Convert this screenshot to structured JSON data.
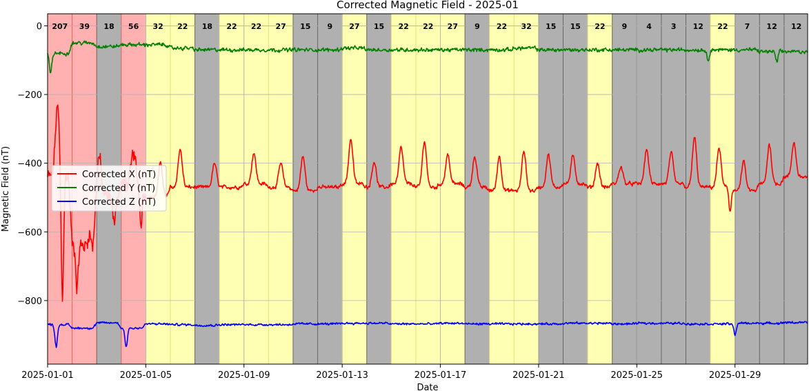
{
  "chart_data": {
    "type": "line",
    "title": "Corrected Magnetic Field - 2025-01",
    "xlabel": "Date",
    "ylabel": "Magnetic Field (nT)",
    "ylim": [
      -985,
      35
    ],
    "xlim": [
      "2025-01-01",
      "2025-01-31T23:00"
    ],
    "xticks": [
      "2025-01-01",
      "2025-01-05",
      "2025-01-09",
      "2025-01-13",
      "2025-01-17",
      "2025-01-21",
      "2025-01-25",
      "2025-01-29"
    ],
    "yticks": [
      0,
      -200,
      -400,
      -600,
      -800
    ],
    "grid": true,
    "legend_position": "center-left",
    "daily_index": [
      207,
      39,
      18,
      56,
      32,
      22,
      18,
      22,
      22,
      27,
      15,
      9,
      27,
      15,
      22,
      22,
      27,
      9,
      22,
      32,
      15,
      15,
      22,
      9,
      4,
      3,
      12,
      22,
      7,
      12,
      12
    ],
    "band_colors": {
      "red": "#ffb0b0",
      "yellow": "#ffffb4",
      "gray": "#b0b0b0"
    },
    "series": [
      {
        "name": "Corrected X (nT)",
        "color": "#ff0000",
        "day_values": [
          -440,
          -640,
          -500,
          -460,
          -500,
          -470,
          -470,
          -470,
          -460,
          -470,
          -480,
          -470,
          -460,
          -470,
          -460,
          -470,
          -460,
          -470,
          -480,
          -480,
          -470,
          -460,
          -470,
          -460,
          -460,
          -460,
          -470,
          -470,
          -480,
          -460,
          -440
        ],
        "peaks": [
          [
            0.4,
            -240
          ],
          [
            2.1,
            -380
          ],
          [
            3.5,
            -370
          ],
          [
            4.6,
            -400
          ],
          [
            5.4,
            -360
          ],
          [
            6.8,
            -400
          ],
          [
            8.4,
            -370
          ],
          [
            9.5,
            -400
          ],
          [
            10.4,
            -380
          ],
          [
            12.35,
            -330
          ],
          [
            13.3,
            -395
          ],
          [
            14.4,
            -355
          ],
          [
            15.35,
            -335
          ],
          [
            16.3,
            -375
          ],
          [
            17.4,
            -380
          ],
          [
            18.4,
            -380
          ],
          [
            19.4,
            -365
          ],
          [
            20.4,
            -375
          ],
          [
            21.4,
            -380
          ],
          [
            22.4,
            -400
          ],
          [
            23.35,
            -410
          ],
          [
            24.4,
            -360
          ],
          [
            25.4,
            -370
          ],
          [
            26.35,
            -325
          ],
          [
            27.35,
            -355
          ],
          [
            28.35,
            -395
          ],
          [
            29.4,
            -345
          ],
          [
            30.4,
            -340
          ]
        ],
        "dips": [
          [
            0.6,
            -800
          ],
          [
            1.2,
            -760
          ],
          [
            1.7,
            -600
          ],
          [
            2.7,
            -580
          ],
          [
            3.8,
            -570
          ],
          [
            27.8,
            -540
          ]
        ]
      },
      {
        "name": "Corrected Y (nT)",
        "color": "#008000",
        "day_values": [
          -80,
          -50,
          -60,
          -55,
          -55,
          -65,
          -70,
          -70,
          -70,
          -70,
          -70,
          -70,
          -65,
          -70,
          -70,
          -70,
          -70,
          -70,
          -70,
          -65,
          -70,
          -70,
          -70,
          -70,
          -70,
          -70,
          -70,
          -70,
          -70,
          -75,
          -75
        ],
        "dips": [
          [
            0.12,
            -140
          ],
          [
            26.9,
            -100
          ],
          [
            29.7,
            -105
          ]
        ]
      },
      {
        "name": "Corrected Z (nT)",
        "color": "#0000ff",
        "day_values": [
          -870,
          -880,
          -865,
          -880,
          -868,
          -870,
          -872,
          -870,
          -870,
          -870,
          -868,
          -868,
          -866,
          -866,
          -868,
          -868,
          -866,
          -868,
          -868,
          -868,
          -868,
          -866,
          -866,
          -868,
          -866,
          -866,
          -868,
          -868,
          -866,
          -866,
          -864
        ],
        "dips": [
          [
            0.35,
            -935
          ],
          [
            3.2,
            -935
          ],
          [
            28.0,
            -900
          ]
        ]
      }
    ]
  }
}
